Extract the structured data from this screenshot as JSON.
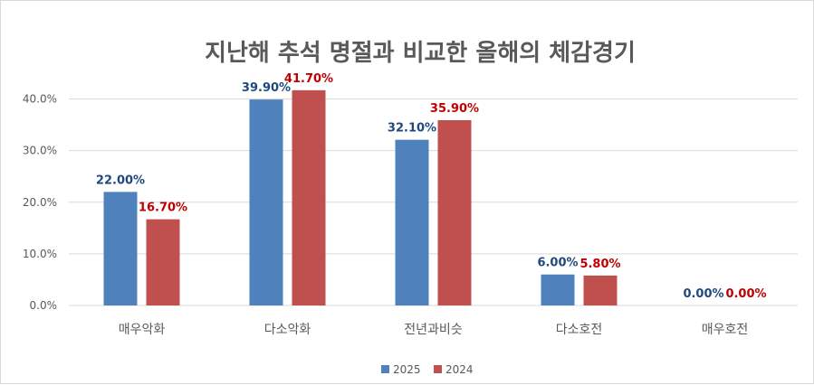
{
  "chart_data": {
    "type": "bar",
    "title": "지난해 추석 명절과 비교한 올해의 체감경기",
    "categories": [
      "매우악화",
      "다소악화",
      "전년과비슷",
      "다소호전",
      "매우호전"
    ],
    "series": [
      {
        "name": "2025",
        "values": [
          22.0,
          39.9,
          32.1,
          6.0,
          0.0
        ],
        "labels": [
          "22.00%",
          "39.90%",
          "32.10%",
          "6.00%",
          "0.00%"
        ],
        "color": "#4f81bd",
        "label_color": "#1f497d"
      },
      {
        "name": "2024",
        "values": [
          16.7,
          41.7,
          35.9,
          5.8,
          0.0
        ],
        "labels": [
          "16.70%",
          "41.70%",
          "35.90%",
          "5.80%",
          "0.00%"
        ],
        "color": "#c0504d",
        "label_color": "#c00000"
      }
    ],
    "yticks": [
      "0.0%",
      "10.0%",
      "20.0%",
      "30.0%",
      "40.0%"
    ],
    "ylim": [
      0,
      45
    ],
    "grid": true,
    "legend_position": "bottom"
  }
}
